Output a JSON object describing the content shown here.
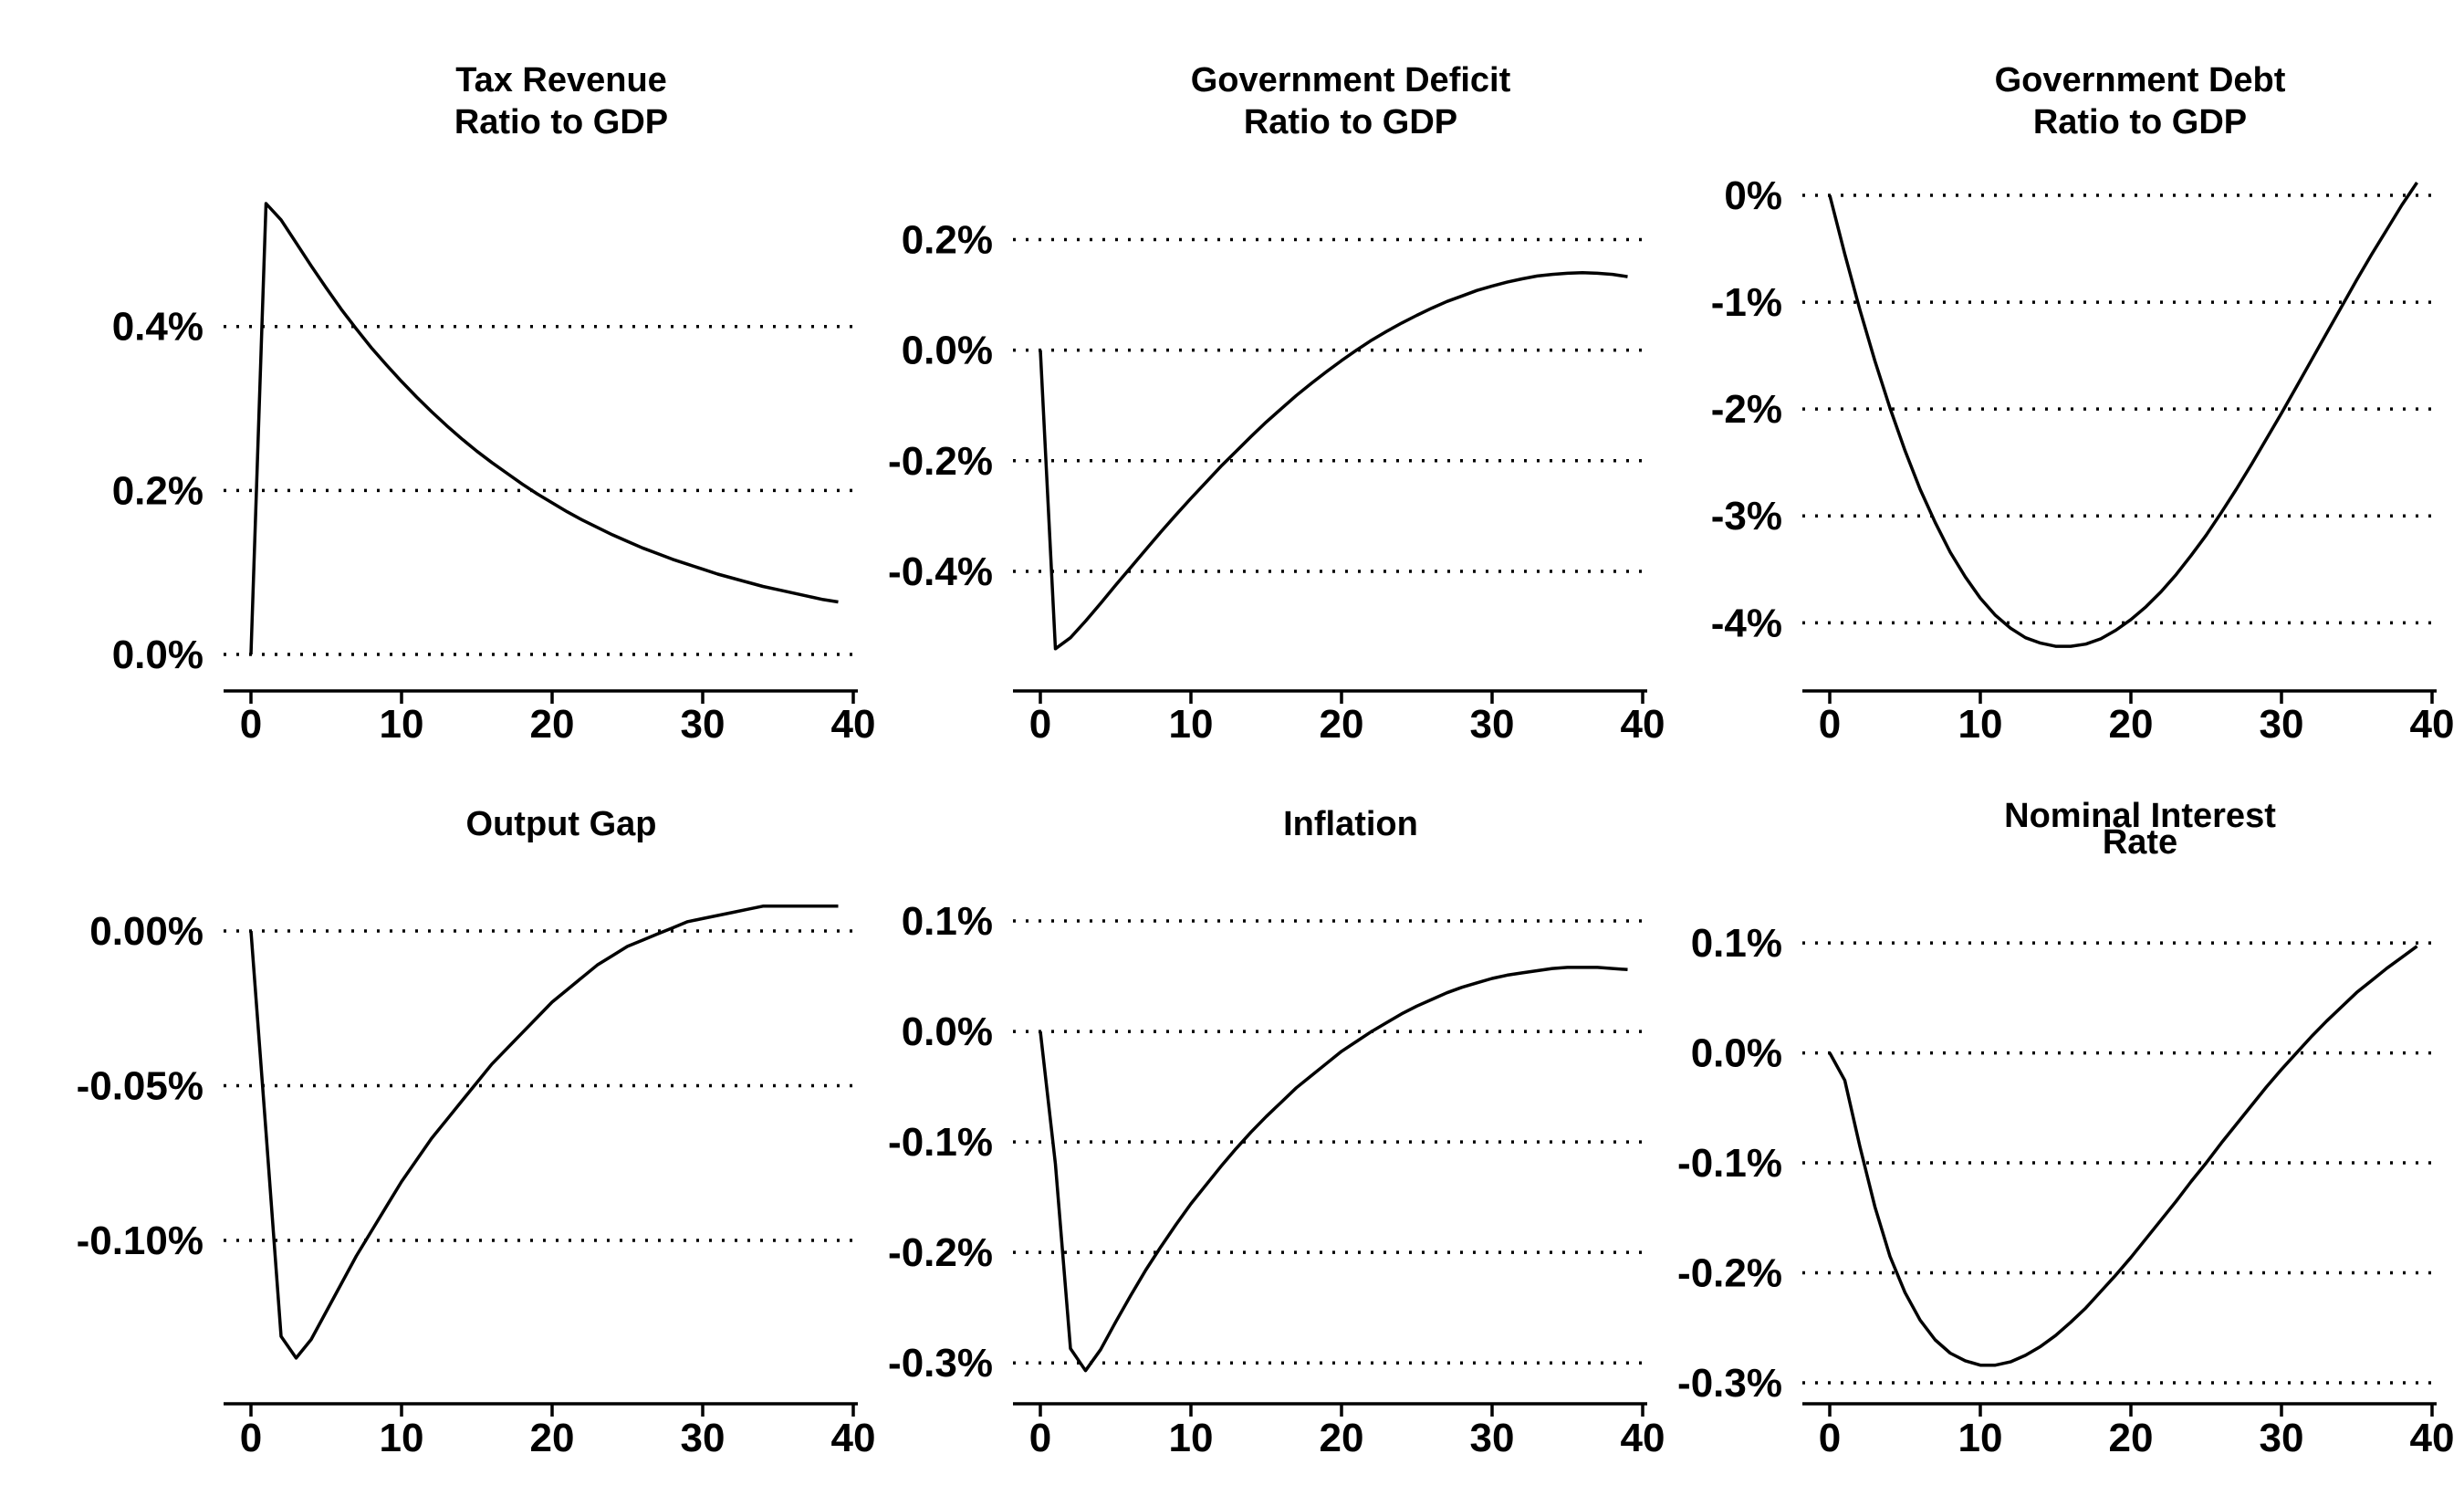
{
  "chart_data": [
    {
      "type": "line",
      "title": [
        "Tax Revenue",
        "Ratio to GDP"
      ],
      "xlim": [
        0,
        40
      ],
      "ylim": [
        -0.0002,
        0.0056
      ],
      "xticks": [
        0,
        10,
        20,
        30,
        40
      ],
      "xtick_labels": [
        "0",
        "10",
        "20",
        "30",
        "40"
      ],
      "yticks": [
        0.0,
        0.002,
        0.004
      ],
      "ytick_labels": [
        "0.0%",
        "0.2%",
        "0.4%"
      ],
      "grid": "horizontal-dotted",
      "x": [
        0,
        1,
        2,
        3,
        4,
        5,
        6,
        7,
        8,
        9,
        10,
        11,
        12,
        13,
        14,
        15,
        16,
        17,
        18,
        19,
        20,
        21,
        22,
        23,
        24,
        25,
        26,
        27,
        28,
        29,
        30,
        31,
        32,
        33,
        34,
        35,
        36,
        37,
        38,
        39
      ],
      "y": [
        0.0,
        0.0055,
        0.0053,
        0.00502,
        0.00474,
        0.00447,
        0.00421,
        0.00397,
        0.00374,
        0.00353,
        0.00333,
        0.00314,
        0.00296,
        0.00279,
        0.00263,
        0.00248,
        0.00234,
        0.00221,
        0.00208,
        0.00196,
        0.00185,
        0.00174,
        0.00164,
        0.00155,
        0.00146,
        0.00138,
        0.0013,
        0.00123,
        0.00116,
        0.0011,
        0.00104,
        0.00098,
        0.00093,
        0.00088,
        0.00083,
        0.00079,
        0.00075,
        0.00071,
        0.00067,
        0.00064
      ]
    },
    {
      "type": "line",
      "title": [
        "Government Deficit",
        "Ratio to GDP"
      ],
      "xlim": [
        0,
        40
      ],
      "ylim": [
        -0.0058,
        0.0028
      ],
      "xticks": [
        0,
        10,
        20,
        30,
        40
      ],
      "xtick_labels": [
        "0",
        "10",
        "20",
        "30",
        "40"
      ],
      "yticks": [
        0.002,
        0.0,
        -0.002,
        -0.004
      ],
      "ytick_labels": [
        "0.2%",
        "0.0%",
        "-0.2%",
        "-0.4%"
      ],
      "grid": "horizontal-dotted",
      "x": [
        0,
        1,
        2,
        3,
        4,
        5,
        6,
        7,
        8,
        9,
        10,
        11,
        12,
        13,
        14,
        15,
        16,
        17,
        18,
        19,
        20,
        21,
        22,
        23,
        24,
        25,
        26,
        27,
        28,
        29,
        30,
        31,
        32,
        33,
        34,
        35,
        36,
        37,
        38,
        39
      ],
      "y": [
        0.0,
        -0.0054,
        -0.0052,
        -0.0049,
        -0.00458,
        -0.00425,
        -0.00393,
        -0.00361,
        -0.00329,
        -0.00298,
        -0.00268,
        -0.00239,
        -0.0021,
        -0.00183,
        -0.00156,
        -0.0013,
        -0.00106,
        -0.00082,
        -0.0006,
        -0.00039,
        -0.00019,
        0.0,
        0.00018,
        0.00034,
        0.00049,
        0.00063,
        0.00076,
        0.00088,
        0.00098,
        0.00108,
        0.00116,
        0.00123,
        0.00129,
        0.00134,
        0.00137,
        0.00139,
        0.0014,
        0.00139,
        0.00137,
        0.00133
      ]
    },
    {
      "type": "line",
      "title": [
        "Government Debt",
        "Ratio to GDP"
      ],
      "xlim": [
        0,
        40
      ],
      "ylim": [
        -0.0445,
        0.0
      ],
      "xticks": [
        0,
        10,
        20,
        30,
        40
      ],
      "xtick_labels": [
        "0",
        "10",
        "20",
        "30",
        "40"
      ],
      "yticks": [
        0.0,
        -0.01,
        -0.02,
        -0.03,
        -0.04
      ],
      "ytick_labels": [
        "0%",
        "-1%",
        "-2%",
        "-3%",
        "-4%"
      ],
      "grid": "horizontal-dotted",
      "x": [
        0,
        1,
        2,
        3,
        4,
        5,
        6,
        7,
        8,
        9,
        10,
        11,
        12,
        13,
        14,
        15,
        16,
        17,
        18,
        19,
        20,
        21,
        22,
        23,
        24,
        25,
        26,
        27,
        28,
        29,
        30,
        31,
        32,
        33,
        34,
        35,
        36,
        37,
        38,
        39
      ],
      "y": [
        0.0,
        -0.0055,
        -0.0107,
        -0.0155,
        -0.0199,
        -0.0239,
        -0.0275,
        -0.0306,
        -0.0334,
        -0.0357,
        -0.0377,
        -0.0393,
        -0.0405,
        -0.0414,
        -0.0419,
        -0.0422,
        -0.0422,
        -0.042,
        -0.0415,
        -0.0407,
        -0.0397,
        -0.0385,
        -0.0371,
        -0.0355,
        -0.0337,
        -0.0318,
        -0.0297,
        -0.0275,
        -0.0252,
        -0.0228,
        -0.0204,
        -0.0179,
        -0.0154,
        -0.0129,
        -0.0104,
        -0.0079,
        -0.0055,
        -0.0032,
        -0.0009,
        0.0012
      ]
    },
    {
      "type": "line",
      "title": [
        "Output Gap"
      ],
      "xlim": [
        0,
        40
      ],
      "ylim": [
        -0.00146,
        5e-05
      ],
      "xticks": [
        0,
        10,
        20,
        30,
        40
      ],
      "xtick_labels": [
        "0",
        "10",
        "20",
        "30",
        "40"
      ],
      "yticks": [
        0.0,
        -0.0005,
        -0.001
      ],
      "ytick_labels": [
        "0.00%",
        "-0.05%",
        "-0.10%"
      ],
      "grid": "horizontal-dotted",
      "x": [
        0,
        1,
        2,
        3,
        4,
        5,
        6,
        7,
        8,
        9,
        10,
        11,
        12,
        13,
        14,
        15,
        16,
        17,
        18,
        19,
        20,
        21,
        22,
        23,
        24,
        25,
        26,
        27,
        28,
        29,
        30,
        31,
        32,
        33,
        34,
        35,
        36,
        37,
        38,
        39
      ],
      "y": [
        0.0,
        -0.00065,
        -0.00131,
        -0.00138,
        -0.00132,
        -0.00123,
        -0.00114,
        -0.00105,
        -0.00097,
        -0.00089,
        -0.00081,
        -0.00074,
        -0.00067,
        -0.00061,
        -0.00055,
        -0.00049,
        -0.00043,
        -0.00038,
        -0.00033,
        -0.00028,
        -0.00023,
        -0.00019,
        -0.00015,
        -0.00011,
        -8e-05,
        -5e-05,
        -3e-05,
        -1e-05,
        1e-05,
        3e-05,
        4e-05,
        5e-05,
        6e-05,
        7e-05,
        8e-05,
        8e-05,
        8e-05,
        8e-05,
        8e-05,
        8e-05
      ]
    },
    {
      "type": "line",
      "title": [
        "Inflation"
      ],
      "xlim": [
        0,
        40
      ],
      "ylim": [
        -0.00318,
        0.00105
      ],
      "xticks": [
        0,
        10,
        20,
        30,
        40
      ],
      "xtick_labels": [
        "0",
        "10",
        "20",
        "30",
        "40"
      ],
      "yticks": [
        0.001,
        0.0,
        -0.001,
        -0.002,
        -0.003
      ],
      "ytick_labels": [
        "0.1%",
        "0.0%",
        "-0.1%",
        "-0.2%",
        "-0.3%"
      ],
      "grid": "horizontal-dotted",
      "x": [
        0,
        1,
        2,
        3,
        4,
        5,
        6,
        7,
        8,
        9,
        10,
        11,
        12,
        13,
        14,
        15,
        16,
        17,
        18,
        19,
        20,
        21,
        22,
        23,
        24,
        25,
        26,
        27,
        28,
        29,
        30,
        31,
        32,
        33,
        34,
        35,
        36,
        37,
        38,
        39
      ],
      "y": [
        0.0,
        -0.0012,
        -0.00287,
        -0.00307,
        -0.00288,
        -0.00263,
        -0.00239,
        -0.00216,
        -0.00195,
        -0.00175,
        -0.00156,
        -0.00139,
        -0.00122,
        -0.00106,
        -0.00091,
        -0.00077,
        -0.00064,
        -0.00051,
        -0.0004,
        -0.00029,
        -0.00018,
        -9e-05,
        0.0,
        8e-05,
        0.00016,
        0.00023,
        0.00029,
        0.00035,
        0.0004,
        0.00044,
        0.00048,
        0.00051,
        0.00053,
        0.00055,
        0.00057,
        0.00058,
        0.00058,
        0.00058,
        0.00057,
        0.00056
      ]
    },
    {
      "type": "line",
      "title": [
        "Nominal Interest",
        "Rate"
      ],
      "xlim": [
        0,
        40
      ],
      "ylim": [
        -0.003,
        0.00125
      ],
      "xticks": [
        0,
        10,
        20,
        30,
        40
      ],
      "xtick_labels": [
        "0",
        "10",
        "20",
        "30",
        "40"
      ],
      "yticks": [
        0.001,
        0.0,
        -0.001,
        -0.002,
        -0.003
      ],
      "ytick_labels": [
        "0.1%",
        "0.0%",
        "-0.1%",
        "-0.2%",
        "-0.3%"
      ],
      "grid": "horizontal-dotted",
      "x": [
        0,
        1,
        2,
        3,
        4,
        5,
        6,
        7,
        8,
        9,
        10,
        11,
        12,
        13,
        14,
        15,
        16,
        17,
        18,
        19,
        20,
        21,
        22,
        23,
        24,
        25,
        26,
        27,
        28,
        29,
        30,
        31,
        32,
        33,
        34,
        35,
        36,
        37,
        38,
        39
      ],
      "y": [
        0.0,
        -0.00025,
        -0.00085,
        -0.0014,
        -0.00185,
        -0.00218,
        -0.00243,
        -0.00261,
        -0.00273,
        -0.0028,
        -0.00284,
        -0.00284,
        -0.00281,
        -0.00275,
        -0.00267,
        -0.00257,
        -0.00245,
        -0.00232,
        -0.00217,
        -0.00202,
        -0.00186,
        -0.00169,
        -0.00152,
        -0.00135,
        -0.00117,
        -0.001,
        -0.00082,
        -0.00065,
        -0.00048,
        -0.00031,
        -0.00015,
        0.0,
        0.00015,
        0.00029,
        0.00042,
        0.00055,
        0.00066,
        0.00077,
        0.00087,
        0.00097
      ]
    }
  ]
}
